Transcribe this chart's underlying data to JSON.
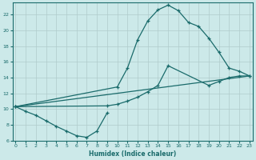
{
  "xlabel": "Humidex (Indice chaleur)",
  "bg_color": "#cce9e9",
  "grid_color": "#b0cccc",
  "line_color": "#1a6b6b",
  "curve1_x": [
    0,
    1,
    2,
    3,
    4,
    5,
    6,
    7,
    8,
    9
  ],
  "curve1_y": [
    10.3,
    9.7,
    9.2,
    8.5,
    7.8,
    7.2,
    6.6,
    6.4,
    7.2,
    9.5
  ],
  "curve2_x": [
    0,
    10,
    11,
    12,
    13,
    14,
    15,
    16,
    17,
    18,
    19,
    20,
    21,
    22,
    23
  ],
  "curve2_y": [
    10.3,
    12.8,
    15.2,
    18.8,
    21.2,
    22.6,
    23.2,
    22.5,
    21.0,
    20.5,
    19.0,
    17.2,
    15.2,
    14.8,
    14.2
  ],
  "curve3_x": [
    0,
    9,
    10,
    11,
    12,
    13,
    14,
    15,
    19,
    20,
    21,
    22,
    23
  ],
  "curve3_y": [
    10.3,
    10.4,
    10.6,
    11.0,
    11.5,
    12.2,
    13.0,
    15.5,
    13.0,
    13.5,
    14.0,
    14.2,
    14.2
  ],
  "curve4_x": [
    0,
    23
  ],
  "curve4_y": [
    10.3,
    14.2
  ],
  "ylim": [
    6,
    23.5
  ],
  "xlim": [
    -0.3,
    23.3
  ],
  "yticks": [
    6,
    8,
    10,
    12,
    14,
    16,
    18,
    20,
    22
  ],
  "xticks": [
    0,
    1,
    2,
    3,
    4,
    5,
    6,
    7,
    8,
    9,
    10,
    11,
    12,
    13,
    14,
    15,
    16,
    17,
    18,
    19,
    20,
    21,
    22,
    23
  ]
}
